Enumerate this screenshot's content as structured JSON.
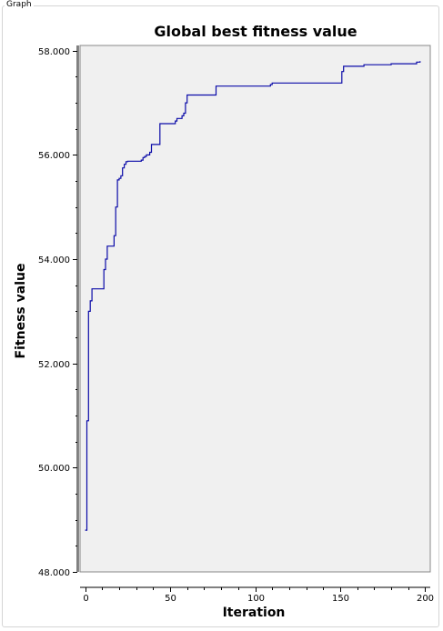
{
  "group": {
    "label": "Graph"
  },
  "chart_data": {
    "type": "line",
    "title": "Global best fitness value",
    "xlabel": "Iteration",
    "ylabel": "Fitness value",
    "xlim": [
      -3,
      203
    ],
    "ylim": [
      48.0,
      58.1
    ],
    "x_ticks": [
      0,
      50,
      100,
      150,
      200
    ],
    "x_tick_labels": [
      "0",
      "50",
      "100",
      "150",
      "200"
    ],
    "y_ticks": [
      48,
      50,
      52,
      54,
      56,
      58
    ],
    "y_tick_labels": [
      "48.000",
      "50.000",
      "52.000",
      "54.000",
      "56.000",
      "58.000"
    ],
    "grid": false,
    "colors": {
      "series": "#0a0aa8",
      "plot_background": "#f0f0f0",
      "plot_border": "#888888"
    },
    "series": [
      {
        "step": true,
        "x": [
          0,
          1,
          2,
          3,
          4,
          10,
          11,
          12,
          13,
          14,
          17,
          18,
          19,
          20,
          21,
          22,
          23,
          24,
          25,
          33,
          34,
          35,
          36,
          38,
          39,
          41,
          44,
          52,
          53,
          54,
          57,
          58,
          59,
          60,
          76,
          77,
          100,
          109,
          110,
          150,
          151,
          152,
          163,
          164,
          180,
          195,
          197
        ],
        "y": [
          48.8,
          50.9,
          53.0,
          53.2,
          53.43,
          53.43,
          53.8,
          54.0,
          54.25,
          54.25,
          54.45,
          55.0,
          55.52,
          55.55,
          55.6,
          55.75,
          55.82,
          55.87,
          55.88,
          55.9,
          55.95,
          55.97,
          56.0,
          56.05,
          56.2,
          56.2,
          56.6,
          56.6,
          56.65,
          56.7,
          56.75,
          56.8,
          57.0,
          57.15,
          57.15,
          57.32,
          57.32,
          57.35,
          57.38,
          57.38,
          57.6,
          57.7,
          57.7,
          57.73,
          57.75,
          57.78,
          57.8
        ]
      }
    ]
  }
}
